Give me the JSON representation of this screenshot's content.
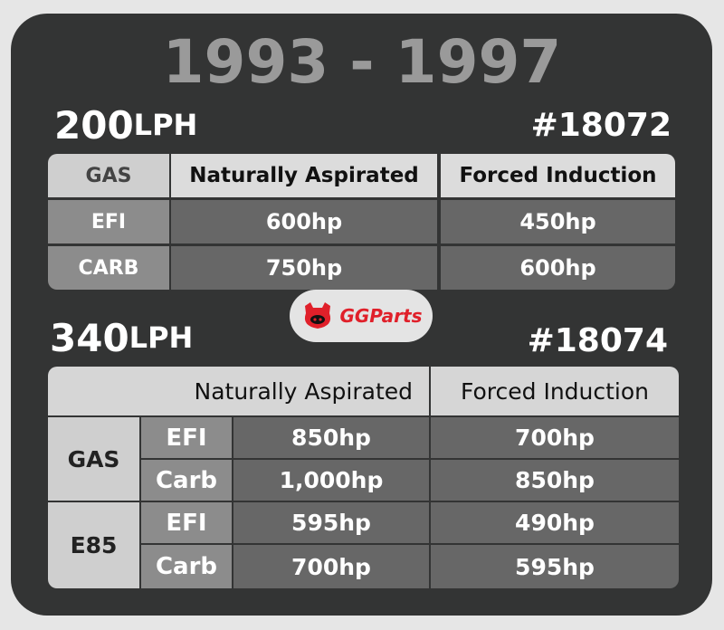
{
  "title": "1993 - 1997",
  "logo": "GGParts",
  "sections": [
    {
      "flow": "200",
      "unit": "LPH",
      "part": "#18072",
      "header": [
        "GAS",
        "Naturally Aspirated",
        "Forced Induction"
      ],
      "rows": [
        [
          "EFI",
          "600hp",
          "450hp"
        ],
        [
          "CARB",
          "750hp",
          "600hp"
        ]
      ]
    },
    {
      "flow": "340",
      "unit": "LPH",
      "part": "#18074",
      "header": [
        "Naturally Aspirated",
        "Forced Induction"
      ],
      "groups": [
        {
          "fuel": "GAS",
          "rows": [
            [
              "EFI",
              "850hp",
              "700hp"
            ],
            [
              "Carb",
              "1,000hp",
              "850hp"
            ]
          ]
        },
        {
          "fuel": "E85",
          "rows": [
            [
              "EFI",
              "595hp",
              "490hp"
            ],
            [
              "Carb",
              "700hp",
              "595hp"
            ]
          ]
        }
      ]
    }
  ]
}
